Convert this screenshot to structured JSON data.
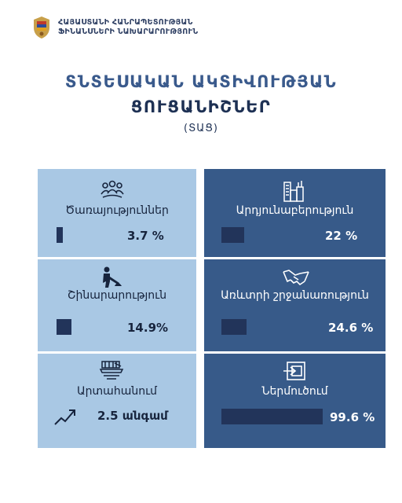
{
  "header": {
    "org_line1": "ՀԱՅԱՍՏԱՆԻ ՀԱՆՐԱՊԵՏՈՒԹՅԱՆ",
    "org_line2": "ՖԻՆԱՆՍՆԵՐԻ ՆԱԽԱՐԱՐՈՒԹՅՈՒՆ"
  },
  "title": {
    "line1": "ՏՆՏԵՍԱԿԱՆ ԱԿՏԻՎՈՒԹՅԱՆ",
    "line2": "ՑՈՒՑԱՆԻՇՆԵՐ",
    "line3": "(ՏԱՑ)"
  },
  "chart_data": {
    "type": "bar",
    "categories": [
      "Ծառայություններ",
      "Արդյունաբերություն",
      "Շինարարություն",
      "Առևտրի շրջանառություն",
      "Արտահանում",
      "Ներմուծում"
    ],
    "values": [
      3.7,
      22,
      14.9,
      24.6,
      2.5,
      99.6
    ],
    "value_labels": [
      "3.7 %",
      "22 %",
      "14.9%",
      "24.6 %",
      "2.5 անգամ",
      "99.6 %"
    ],
    "units": [
      "%",
      "%",
      "%",
      "%",
      "անգամ",
      "%"
    ]
  },
  "icons": [
    "people-icon",
    "factory-icon",
    "construction-worker-icon",
    "handshake-icon",
    "export-icon",
    "import-icon",
    "trend-up-arrow-icon"
  ],
  "colors": {
    "left_panel": "#a9c8e4",
    "right_panel": "#375a89",
    "bar": "#22345a",
    "title": "#2e4a78"
  }
}
